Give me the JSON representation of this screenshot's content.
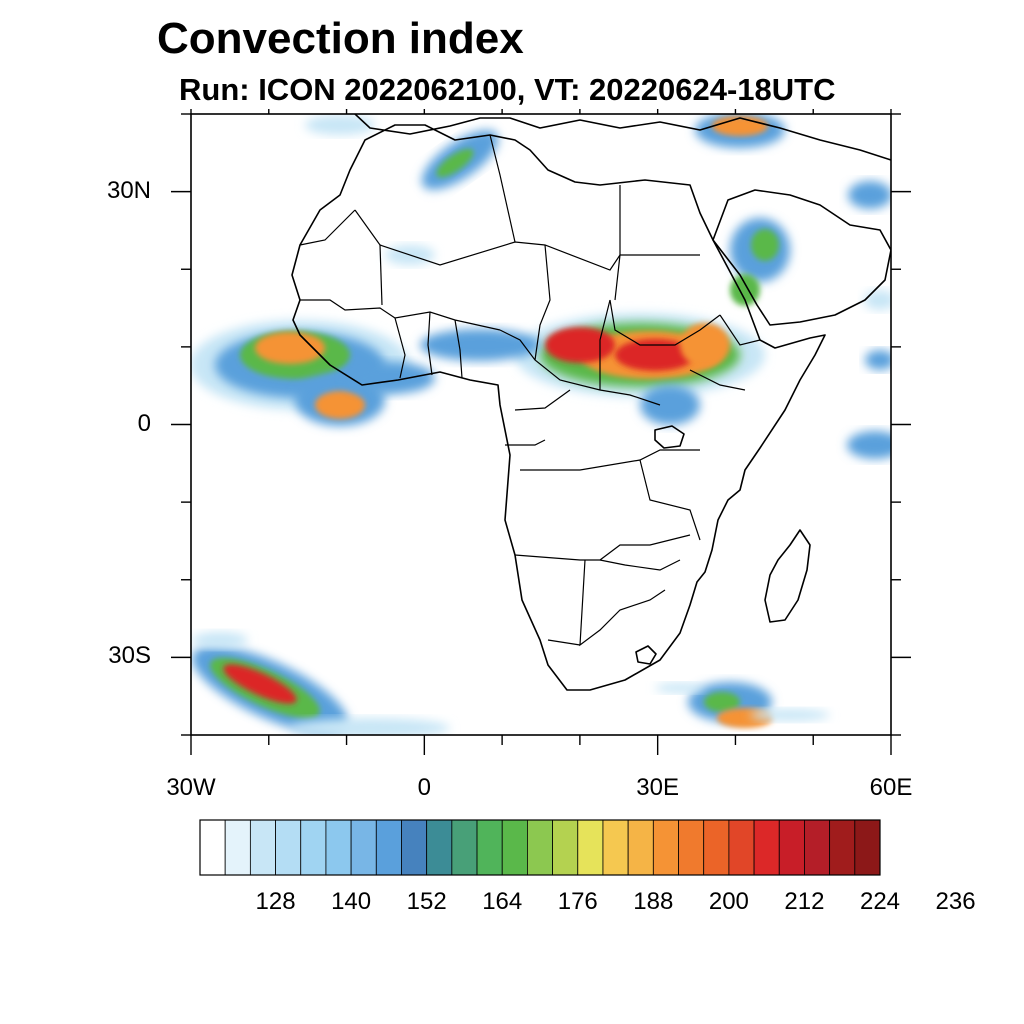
{
  "title": "Convection index",
  "subtitle": "Run: ICON 2022062100,  VT: 20220624-18UTC",
  "map": {
    "extent": {
      "lon_min": -30,
      "lon_max": 60,
      "lat_min": -40,
      "lat_max": 40
    },
    "lat_labels": [
      {
        "lat": 30,
        "text": "30N"
      },
      {
        "lat": 0,
        "text": "0"
      },
      {
        "lat": -30,
        "text": "30S"
      }
    ],
    "lon_labels": [
      {
        "lon": -30,
        "text": "30W"
      },
      {
        "lon": 0,
        "text": "0"
      },
      {
        "lon": 30,
        "text": "30E"
      },
      {
        "lon": 60,
        "text": "60E"
      }
    ],
    "field_colors": {
      "low": "#c8e6f6",
      "mid": "#5aa0dc",
      "green": "#5ab84a",
      "yellow": "#f0e055",
      "orange": "#f59335",
      "red": "#dc2828",
      "darkred": "#a01c1c"
    }
  },
  "colorbar": {
    "colors": [
      "#ffffff",
      "#e4f3fb",
      "#c8e6f6",
      "#b4ddf4",
      "#a0d4f2",
      "#8cc8ee",
      "#78b6e6",
      "#5aa0dc",
      "#4682be",
      "#3c8c96",
      "#48a078",
      "#50b45a",
      "#5ab84a",
      "#8cc850",
      "#b4d250",
      "#e6e35a",
      "#f5c850",
      "#f5b446",
      "#f59335",
      "#f07a2d",
      "#eb6428",
      "#e14628",
      "#dc2828",
      "#c81e28",
      "#b41e28",
      "#a01c1c",
      "#8c1818"
    ],
    "labels": [
      "128",
      "140",
      "152",
      "164",
      "176",
      "188",
      "200",
      "212",
      "224",
      "236"
    ]
  }
}
